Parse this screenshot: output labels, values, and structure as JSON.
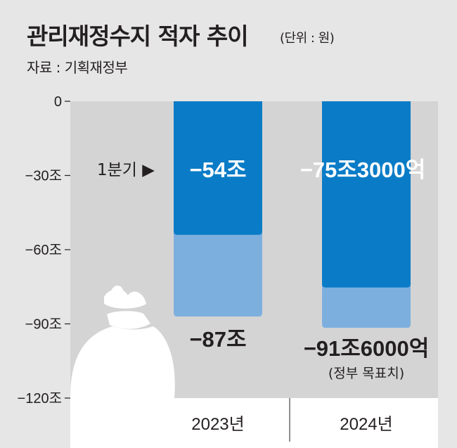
{
  "header": {
    "title": "관리재정수지 적자 추이",
    "unit": "(단위 : 원)",
    "source": "자료 : 기획재정부"
  },
  "chart_data": {
    "type": "bar",
    "categories": [
      "2023년",
      "2024년"
    ],
    "series": [
      {
        "values": [
          -87,
          -91.6
        ],
        "labels": [
          "−87조",
          "−91조6000억"
        ],
        "color": "#7dafde"
      },
      {
        "values": [
          -54,
          -75.3
        ],
        "labels": [
          "−54조",
          "−75조3000억"
        ],
        "color": "#0a7cc7"
      }
    ],
    "annotations": {
      "q1_label": "1분기 ▶",
      "target_note": "(정부 목표치)"
    },
    "yticks": [
      0,
      -30,
      -60,
      -90,
      -120
    ],
    "ytick_labels": [
      "0",
      "−30조",
      "−60조",
      "−90조",
      "−120조"
    ],
    "ylim": [
      -120,
      0
    ],
    "grid": false,
    "colors": {
      "background": "#e6e6e6",
      "plot_bg": "#d4d4d4",
      "axis_bg": "#ffffff",
      "icon": "#ffffff"
    }
  }
}
